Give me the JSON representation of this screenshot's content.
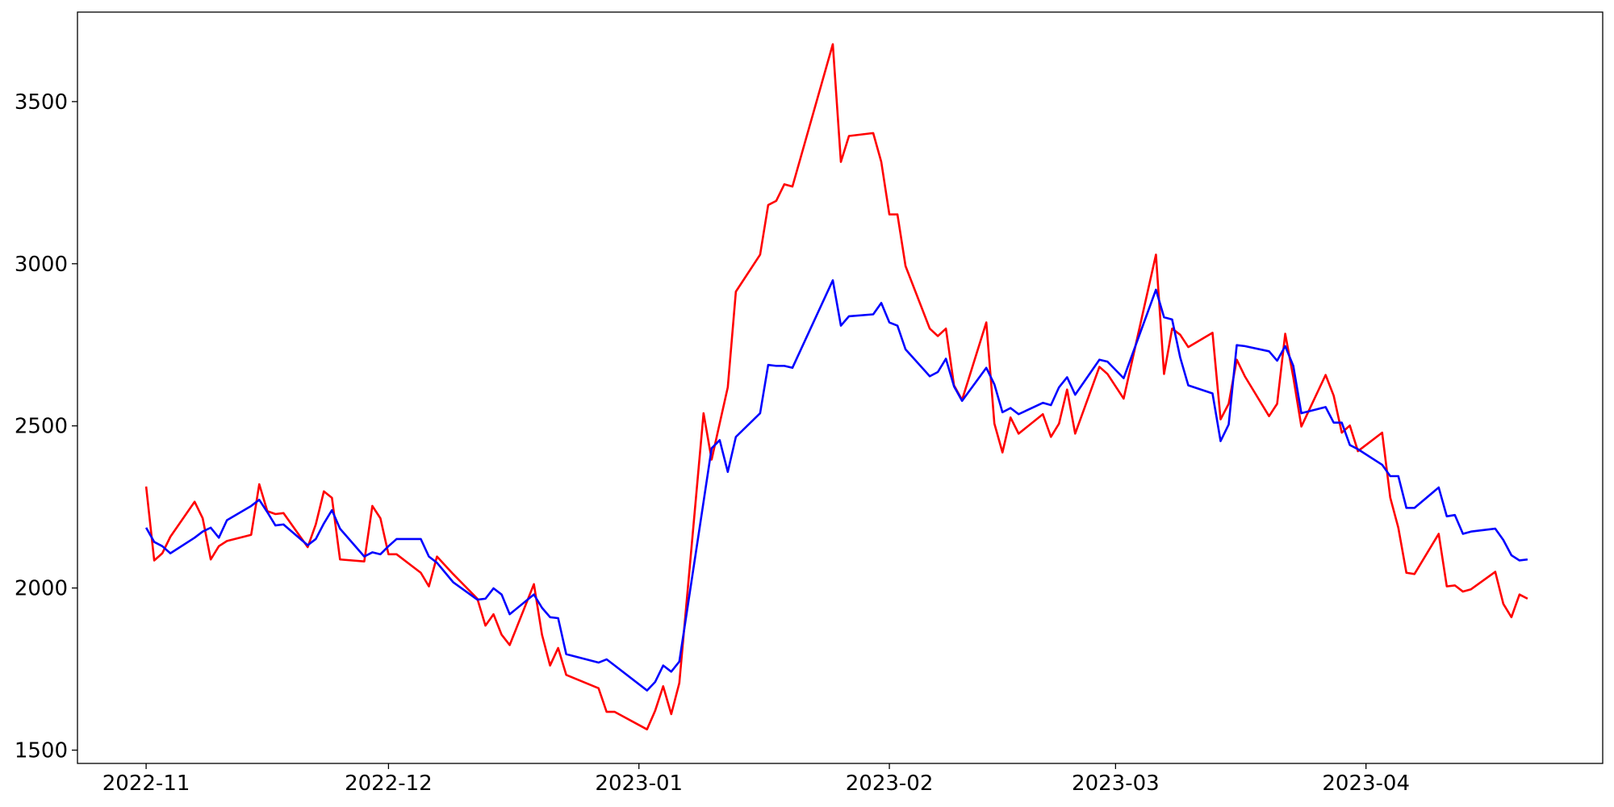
{
  "chart_data": {
    "type": "line",
    "x": [
      0,
      1,
      2,
      3,
      6,
      7,
      8,
      9,
      10,
      13,
      14,
      15,
      16,
      17,
      20,
      21,
      22,
      23,
      24,
      27,
      28,
      29,
      30,
      31,
      34,
      35,
      36,
      38,
      41,
      42,
      43,
      44,
      45,
      48,
      49,
      50,
      51,
      52,
      56,
      57,
      58,
      62,
      63,
      64,
      65,
      66,
      69,
      70,
      71,
      72,
      73,
      76,
      77,
      78,
      79,
      80,
      85,
      86,
      87,
      90,
      91,
      92,
      93,
      94,
      97,
      98,
      99,
      100,
      101,
      104,
      105,
      106,
      107,
      108,
      111,
      112,
      113,
      114,
      115,
      118,
      119,
      121,
      125,
      126,
      127,
      128,
      129,
      132,
      133,
      134,
      135,
      136,
      139,
      140,
      141,
      142,
      143,
      146,
      147,
      148,
      149,
      150,
      153,
      154,
      155,
      156,
      157,
      160,
      161,
      162,
      163,
      164,
      167,
      168,
      169,
      170,
      171
    ],
    "series": [
      {
        "color": "#ff0000",
        "values": [
          2313,
          2085,
          2107,
          2158,
          2266,
          2215,
          2088,
          2129,
          2145,
          2164,
          2320,
          2237,
          2228,
          2231,
          2126,
          2196,
          2298,
          2278,
          2088,
          2082,
          2253,
          2215,
          2104,
          2104,
          2047,
          2005,
          2097,
          2043,
          1967,
          1884,
          1919,
          1856,
          1824,
          2012,
          1856,
          1761,
          1815,
          1732,
          1691,
          1618,
          1618,
          1564,
          1621,
          1697,
          1611,
          1707,
          2539,
          2396,
          2508,
          2619,
          2914,
          3028,
          3181,
          3194,
          3245,
          3238,
          3677,
          3314,
          3394,
          3403,
          3314,
          3152,
          3152,
          2993,
          2800,
          2777,
          2800,
          2625,
          2580,
          2819,
          2507,
          2418,
          2526,
          2476,
          2536,
          2466,
          2507,
          2612,
          2476,
          2682,
          2660,
          2584,
          3028,
          2660,
          2800,
          2781,
          2743,
          2787,
          2520,
          2568,
          2704,
          2653,
          2530,
          2568,
          2784,
          2650,
          2498,
          2657,
          2593,
          2479,
          2501,
          2422,
          2479,
          2279,
          2186,
          2047,
          2043,
          2167,
          2005,
          2008,
          1989,
          1996,
          2050,
          1951,
          1910,
          1980,
          1967
        ]
      },
      {
        "color": "#0000ff",
        "values": [
          2186,
          2142,
          2129,
          2107,
          2155,
          2174,
          2186,
          2155,
          2209,
          2253,
          2272,
          2234,
          2193,
          2196,
          2132,
          2151,
          2199,
          2240,
          2183,
          2097,
          2110,
          2104,
          2129,
          2151,
          2151,
          2097,
          2078,
          2018,
          1964,
          1967,
          1999,
          1980,
          1919,
          1980,
          1939,
          1910,
          1907,
          1796,
          1770,
          1780,
          1761,
          1684,
          1710,
          1761,
          1742,
          1773,
          2266,
          2431,
          2456,
          2358,
          2466,
          2539,
          2688,
          2685,
          2685,
          2679,
          2949,
          2809,
          2838,
          2844,
          2879,
          2819,
          2809,
          2736,
          2653,
          2666,
          2707,
          2622,
          2577,
          2679,
          2628,
          2542,
          2555,
          2536,
          2571,
          2564,
          2619,
          2650,
          2596,
          2704,
          2698,
          2647,
          2920,
          2835,
          2828,
          2711,
          2625,
          2600,
          2453,
          2504,
          2749,
          2746,
          2730,
          2701,
          2746,
          2685,
          2539,
          2558,
          2510,
          2510,
          2441,
          2428,
          2380,
          2345,
          2345,
          2247,
          2247,
          2310,
          2221,
          2225,
          2167,
          2174,
          2183,
          2148,
          2101,
          2085,
          2088
        ]
      }
    ],
    "xlim": [
      -8.5,
      180.3
    ],
    "xticks": [
      {
        "value": 0,
        "label": "2022-11"
      },
      {
        "value": 30,
        "label": "2022-12"
      },
      {
        "value": 61,
        "label": "2023-01"
      },
      {
        "value": 92,
        "label": "2023-02"
      },
      {
        "value": 120,
        "label": "2023-03"
      },
      {
        "value": 151,
        "label": "2023-04"
      }
    ],
    "ylim": [
      1459,
      3776
    ],
    "yticks": [
      1500,
      2000,
      2500,
      3000,
      3500
    ],
    "grid": false
  }
}
